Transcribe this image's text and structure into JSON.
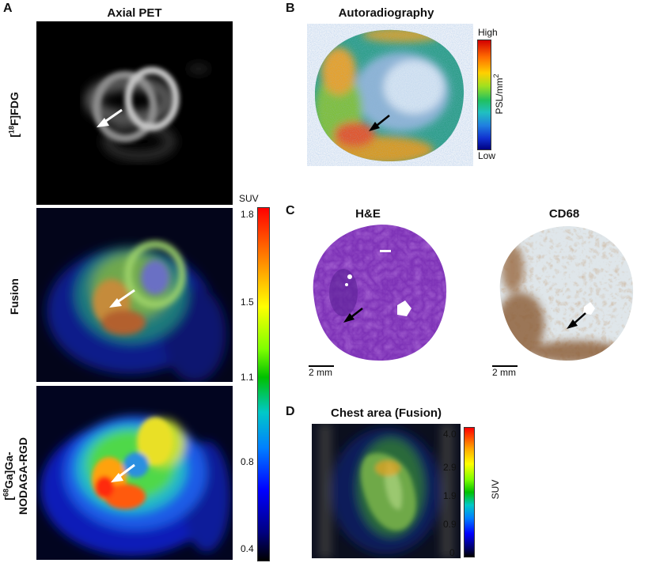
{
  "panels": {
    "A": "A",
    "B": "B",
    "C": "C",
    "D": "D"
  },
  "panelA": {
    "title": "Axial PET",
    "rows": {
      "fdg_pre": "[",
      "fdg_sup": "18",
      "fdg_post": "F]FDG",
      "fusion": "Fusion",
      "ga_pre": "[",
      "ga_sup": "68",
      "ga_post": "Ga]Ga-",
      "ga_line2": "NODAGA-RGD"
    },
    "colorbar": {
      "label": "SUV",
      "ticks": [
        "1.8",
        "1.5",
        "1.1",
        "0.8",
        "0.4"
      ]
    }
  },
  "panelB": {
    "title": "Autoradiography",
    "colorbar": {
      "high": "High",
      "low": "Low",
      "unit_pre": "PSL/mm",
      "unit_sup": "2"
    }
  },
  "panelC": {
    "he_title": "H&E",
    "cd68_title": "CD68",
    "he_scale": "2 mm",
    "cd68_scale": "2 mm"
  },
  "panelD": {
    "title": "Chest area (Fusion)",
    "colorbar": {
      "label": "SUV",
      "ticks": [
        "4.0",
        "2.9",
        "1.9",
        "0.9",
        "0"
      ]
    }
  },
  "colors": {
    "jet_top": "#ff0000",
    "jet_bottom": "#000080",
    "he_purple": "#7b2fb5",
    "cd68_brown": "#8a5a32"
  }
}
